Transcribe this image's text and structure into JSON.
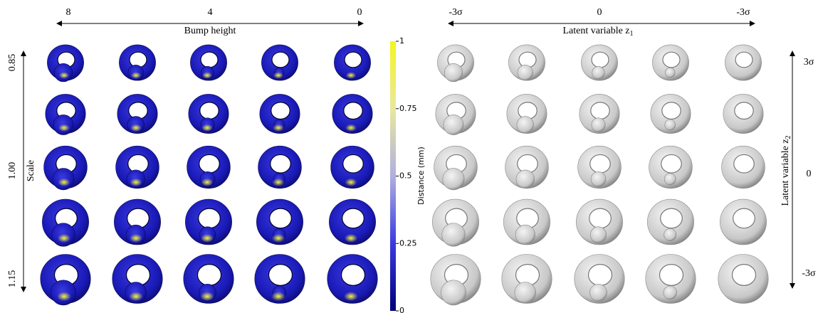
{
  "left_panel": {
    "top_labels": [
      "8",
      "4",
      "0"
    ],
    "top_title": "Bump height",
    "side_labels": [
      "0.85",
      "1.00",
      "1.15"
    ],
    "side_title": "Scale",
    "colorbar": {
      "title": "Distance (mm)",
      "lim": [
        0,
        1
      ],
      "ticks": [
        0,
        0.25,
        0.5,
        0.75,
        1
      ]
    }
  },
  "right_panel": {
    "top_labels": [
      "-3σ",
      "0",
      "-3σ"
    ],
    "top_title": {
      "text": "Latent variable z",
      "subscript": "1"
    },
    "side_labels": [
      "3σ",
      "0",
      "-3σ"
    ],
    "side_title": {
      "text": "Latent variable z",
      "subscript": "2"
    }
  }
}
